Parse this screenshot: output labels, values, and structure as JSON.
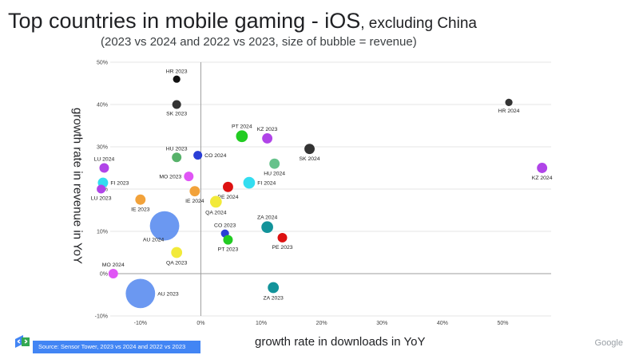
{
  "title": {
    "main": "Top countries in mobile gaming - iOS",
    "suffix": ", excluding China",
    "subtitle": "(2023 vs 2024 and 2022 vs 2023, size of bubble = revenue)"
  },
  "footer": {
    "source": "Source: Sensor Tower, 2023 vs 2024 and 2022 vs 2023",
    "brand": "Google"
  },
  "chart_data": {
    "type": "scatter",
    "title": "Top countries in mobile gaming - iOS, excluding China",
    "xlabel": "growth rate in downloads in YoY",
    "ylabel": "growth rate in revenue in YoY",
    "xlim": [
      -15,
      58
    ],
    "ylim": [
      -10,
      50
    ],
    "xticks": [
      -10,
      0,
      10,
      20,
      30,
      40,
      50
    ],
    "yticks": [
      -10,
      0,
      10,
      20,
      30,
      40,
      50
    ],
    "xtick_labels": [
      "-10%",
      "0%",
      "10%",
      "20%",
      "30%",
      "40%",
      "50%"
    ],
    "ytick_labels": [
      "-10%",
      "0%",
      "10%",
      "20%",
      "30%",
      "40%",
      "50%"
    ],
    "grid": "horizontal",
    "bubble_size": "revenue",
    "points": [
      {
        "label": "HR 2023",
        "x": -4,
        "y": 46,
        "size": 1.0,
        "color": "#111111",
        "label_pos": "above"
      },
      {
        "label": "SK 2023",
        "x": -4,
        "y": 40,
        "size": 1.2,
        "color": "#333333",
        "label_pos": "below"
      },
      {
        "label": "HR 2024",
        "x": 51,
        "y": 40.5,
        "size": 1.0,
        "color": "#333333",
        "label_pos": "below"
      },
      {
        "label": "PT 2024",
        "x": 6.8,
        "y": 32.5,
        "size": 1.6,
        "color": "#22cc22",
        "label_pos": "above"
      },
      {
        "label": "KZ 2023",
        "x": 11,
        "y": 32,
        "size": 1.4,
        "color": "#b044e8",
        "label_pos": "above"
      },
      {
        "label": "SK 2024",
        "x": 18,
        "y": 29.5,
        "size": 1.4,
        "color": "#333333",
        "label_pos": "below"
      },
      {
        "label": "HU 2023",
        "x": -4,
        "y": 27.5,
        "size": 1.3,
        "color": "#57b26a",
        "label_pos": "above"
      },
      {
        "label": "CO 2024",
        "x": -0.5,
        "y": 28,
        "size": 1.2,
        "color": "#2a3ed6",
        "label_pos": "right"
      },
      {
        "label": "HU 2024",
        "x": 12.2,
        "y": 26,
        "size": 1.4,
        "color": "#66c28b",
        "label_pos": "below"
      },
      {
        "label": "KZ 2024",
        "x": 56.5,
        "y": 25,
        "size": 1.4,
        "color": "#b044e8",
        "label_pos": "below"
      },
      {
        "label": "LU 2024",
        "x": -16,
        "y": 25,
        "size": 1.3,
        "color": "#b044e8",
        "label_pos": "above"
      },
      {
        "label": "MO 2023",
        "x": -2,
        "y": 23,
        "size": 1.3,
        "color": "#e055f5",
        "label_pos": "left"
      },
      {
        "label": "FI 2023",
        "x": -16.2,
        "y": 21.5,
        "size": 1.4,
        "color": "#33ddf0",
        "label_pos": "right"
      },
      {
        "label": "FI 2024",
        "x": 8,
        "y": 21.5,
        "size": 1.6,
        "color": "#33ddf0",
        "label_pos": "right"
      },
      {
        "label": "PE 2024",
        "x": 4.5,
        "y": 20.5,
        "size": 1.4,
        "color": "#dd1111",
        "label_pos": "below"
      },
      {
        "label": "LU 2023",
        "x": -16.5,
        "y": 20,
        "size": 1.2,
        "color": "#b044e8",
        "label_pos": "below"
      },
      {
        "label": "IE 2024",
        "x": -1,
        "y": 19.5,
        "size": 1.4,
        "color": "#f2a23a",
        "label_pos": "below"
      },
      {
        "label": "IE 2023",
        "x": -10,
        "y": 17.5,
        "size": 1.4,
        "color": "#f2a23a",
        "label_pos": "below"
      },
      {
        "label": "QA 2024",
        "x": 2.5,
        "y": 17,
        "size": 1.6,
        "color": "#f2ea3a",
        "label_pos": "below"
      },
      {
        "label": "AU 2024",
        "x": -6,
        "y": 11.3,
        "size": 4.0,
        "color": "#5b8def",
        "label_pos": "below-left"
      },
      {
        "label": "ZA 2024",
        "x": 11,
        "y": 11,
        "size": 1.6,
        "color": "#12939a",
        "label_pos": "above"
      },
      {
        "label": "CO 2023",
        "x": 4,
        "y": 9.5,
        "size": 1.1,
        "color": "#2a3ed6",
        "label_pos": "above"
      },
      {
        "label": "PE 2023",
        "x": 13.5,
        "y": 8.5,
        "size": 1.3,
        "color": "#dd1111",
        "label_pos": "below"
      },
      {
        "label": "PT 2023",
        "x": 4.5,
        "y": 8,
        "size": 1.3,
        "color": "#22cc22",
        "label_pos": "below"
      },
      {
        "label": "QA 2023",
        "x": -4,
        "y": 5,
        "size": 1.5,
        "color": "#f2ea3a",
        "label_pos": "below"
      },
      {
        "label": "MO 2024",
        "x": -14.5,
        "y": 0,
        "size": 1.3,
        "color": "#e055f5",
        "label_pos": "above"
      },
      {
        "label": "ZA 2023",
        "x": 12,
        "y": -3.3,
        "size": 1.5,
        "color": "#12939a",
        "label_pos": "below"
      },
      {
        "label": "AU 2023",
        "x": -10,
        "y": -4.7,
        "size": 4.0,
        "color": "#5b8def",
        "label_pos": "right"
      }
    ]
  }
}
